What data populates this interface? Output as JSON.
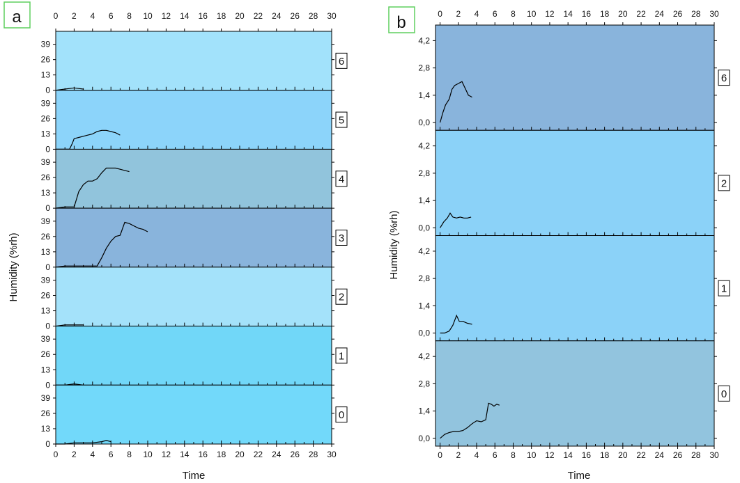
{
  "figure": {
    "panel_a_label": "a",
    "panel_b_label": "b",
    "label_box_color": "#5fcf5f"
  },
  "chart_data": [
    {
      "type": "line",
      "panel": "a",
      "xlabel": "Time",
      "ylabel": "Humidity (%rh)",
      "xlim": [
        0,
        30
      ],
      "x_ticks": [
        "0",
        "2",
        "4",
        "6",
        "8",
        "10",
        "12",
        "14",
        "16",
        "18",
        "20",
        "22",
        "24",
        "26",
        "28",
        "30"
      ],
      "ylim": [
        0,
        50
      ],
      "y_ticks": [
        "0",
        "13",
        "26",
        "39"
      ],
      "grid": false,
      "line_color": "#000000",
      "subplots": [
        {
          "label": "6",
          "background": "#a2e2fb",
          "x": [
            0,
            1,
            2,
            3
          ],
          "y": [
            0,
            1,
            2,
            1
          ]
        },
        {
          "label": "5",
          "background": "#8cd4fa",
          "x": [
            0,
            1.5,
            1.8,
            2,
            2.5,
            3,
            3.5,
            4,
            4.5,
            5,
            5.5,
            6,
            6.5,
            7
          ],
          "y": [
            0,
            0,
            5,
            9,
            10,
            11,
            12,
            13,
            15,
            16,
            16,
            15,
            14,
            12
          ]
        },
        {
          "label": "4",
          "background": "#91c4dc",
          "x": [
            0,
            1,
            2,
            2.5,
            3,
            3.5,
            4,
            4.5,
            5,
            5.5,
            6,
            6.5,
            7,
            7.5,
            8
          ],
          "y": [
            0,
            1,
            1,
            14,
            20,
            23,
            23,
            25,
            30,
            34,
            34,
            34,
            33,
            32,
            31
          ]
        },
        {
          "label": "3",
          "background": "#89b4dc",
          "x": [
            0,
            1,
            2,
            3,
            4,
            4.5,
            5,
            5.5,
            6,
            6.5,
            7,
            7.5,
            8,
            8.5,
            9,
            9.5,
            10
          ],
          "y": [
            0,
            1,
            1,
            1,
            1,
            1,
            8,
            16,
            22,
            26,
            27,
            38,
            37,
            35,
            33,
            32,
            30
          ]
        },
        {
          "label": "2",
          "background": "#a4e2fa",
          "x": [
            0,
            1,
            2,
            3
          ],
          "y": [
            0,
            1,
            1,
            1
          ]
        },
        {
          "label": "1",
          "background": "#71d7f8",
          "x": [
            0,
            1,
            2,
            3
          ],
          "y": [
            0,
            0,
            1,
            0
          ]
        },
        {
          "label": "0",
          "background": "#72d9fa",
          "x": [
            0,
            1,
            2,
            3,
            4,
            5,
            5.5,
            6
          ],
          "y": [
            0,
            0,
            1,
            1,
            1,
            2,
            3,
            2
          ]
        }
      ]
    },
    {
      "type": "line",
      "panel": "b",
      "xlabel": "Time",
      "ylabel": "Humidity (%rh)",
      "xlim": [
        -0.5,
        30
      ],
      "x_ticks": [
        "0",
        "2",
        "4",
        "6",
        "8",
        "10",
        "12",
        "14",
        "16",
        "18",
        "20",
        "22",
        "24",
        "26",
        "28",
        "30"
      ],
      "ylim": [
        -0.4,
        5.0
      ],
      "y_ticks": [
        "0,0",
        "1,4",
        "2,8",
        "4,2"
      ],
      "grid": false,
      "line_color": "#000000",
      "subplots": [
        {
          "label": "6",
          "background": "#89b4dc",
          "x": [
            0,
            0.3,
            0.6,
            1,
            1.3,
            1.6,
            2,
            2.4,
            2.8,
            3.1,
            3.5
          ],
          "y": [
            0.0,
            0.5,
            0.9,
            1.2,
            1.7,
            1.9,
            2.0,
            2.1,
            1.7,
            1.4,
            1.3
          ]
        },
        {
          "label": "2",
          "background": "#8bd2f8",
          "x": [
            0,
            0.4,
            0.8,
            1.1,
            1.4,
            1.8,
            2.2,
            2.6,
            3.0,
            3.4
          ],
          "y": [
            0.0,
            0.3,
            0.5,
            0.75,
            0.55,
            0.5,
            0.55,
            0.5,
            0.5,
            0.55
          ]
        },
        {
          "label": "1",
          "background": "#8bd2f8",
          "x": [
            0,
            0.5,
            1,
            1.4,
            1.8,
            2.1,
            2.5,
            3.0,
            3.5
          ],
          "y": [
            0.0,
            0.0,
            0.1,
            0.4,
            0.9,
            0.6,
            0.6,
            0.5,
            0.45
          ]
        },
        {
          "label": "0",
          "background": "#92c4de",
          "x": [
            0,
            0.5,
            1,
            1.5,
            2,
            2.5,
            3,
            3.5,
            4,
            4.5,
            5,
            5.3,
            5.6,
            5.9,
            6.2,
            6.5
          ],
          "y": [
            0.0,
            0.2,
            0.3,
            0.35,
            0.35,
            0.4,
            0.55,
            0.75,
            0.9,
            0.85,
            0.95,
            1.8,
            1.75,
            1.65,
            1.75,
            1.7
          ]
        }
      ]
    }
  ]
}
